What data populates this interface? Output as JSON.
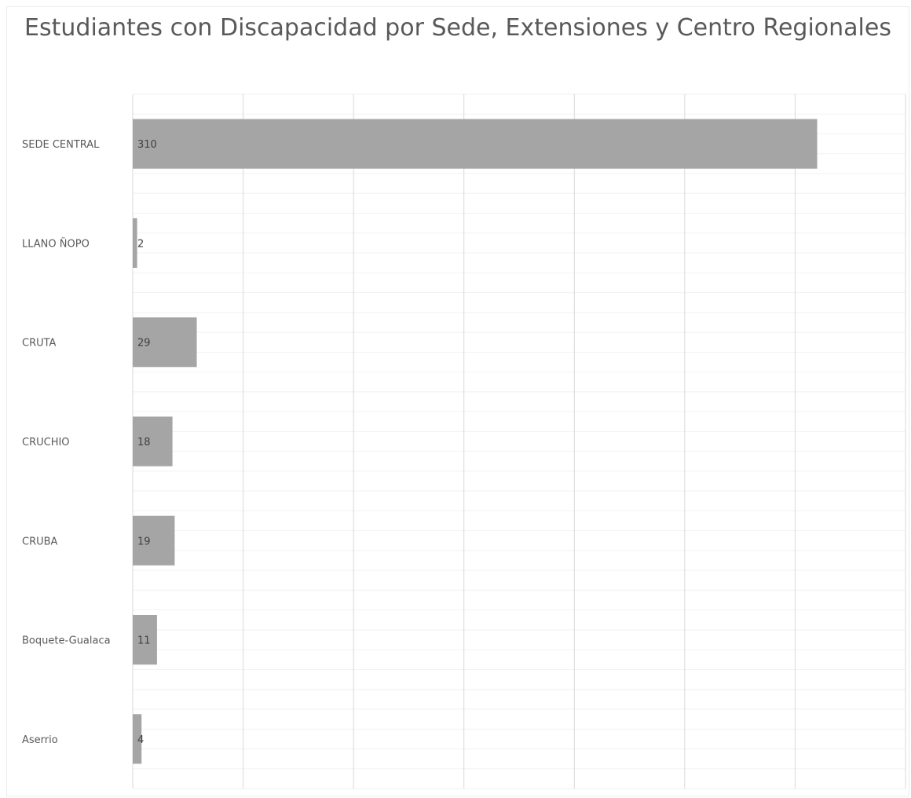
{
  "chart_data": {
    "type": "bar",
    "orientation": "horizontal",
    "title": "Estudiantes con Discapacidad por Sede, Extensiones y Centro Regionales",
    "categories": [
      "SEDE CENTRAL",
      "LLANO ÑOPO",
      "CRUTA",
      "CRUCHIO",
      "CRUBA",
      "Boquete-Gualaca",
      "Aserrio"
    ],
    "values": [
      310,
      2,
      29,
      18,
      19,
      11,
      4
    ],
    "xlim": [
      0,
      350
    ],
    "x_gridline_step": 50,
    "xlabel": "",
    "ylabel": "",
    "data_labels": true,
    "grid": true,
    "legend": "none",
    "bar_color": "#a5a5a5",
    "gridline_color": "#d9d9d9",
    "minor_gridline_color": "#f2f2f2"
  }
}
